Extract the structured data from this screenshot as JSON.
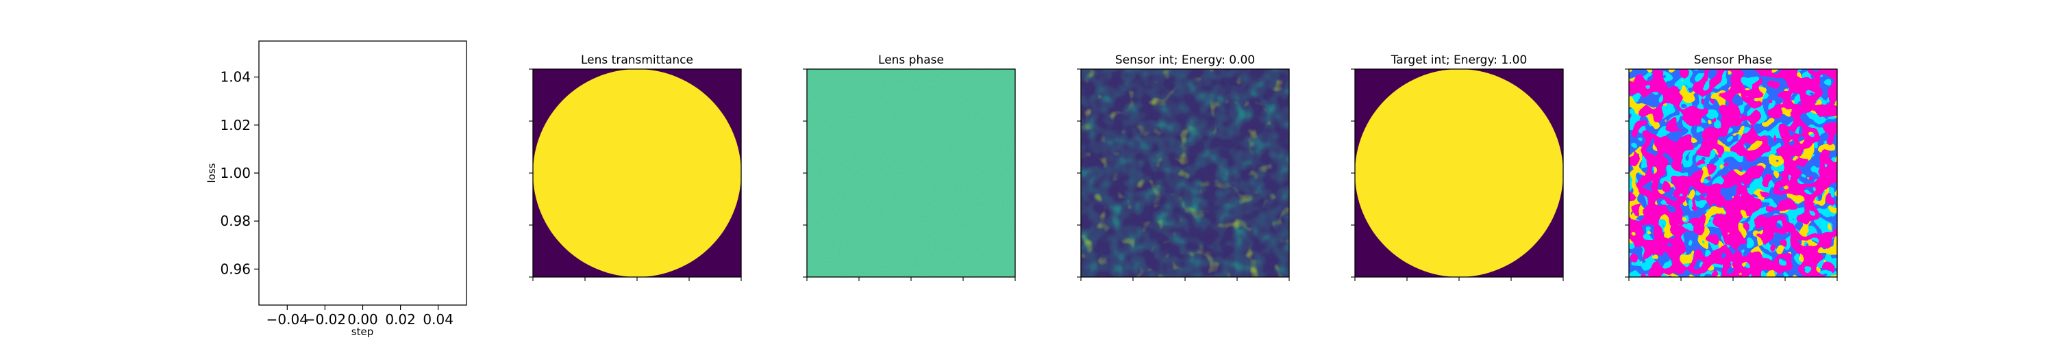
{
  "figure_caption": "",
  "chart_data": [
    {
      "type": "line",
      "title": "",
      "xlabel": "step",
      "ylabel": "loss",
      "xlim": [
        -0.055,
        0.055
      ],
      "ylim": [
        0.945,
        1.055
      ],
      "xticks": [
        -0.04,
        -0.02,
        0.0,
        0.02,
        0.04
      ],
      "xtick_labels": [
        "−0.04",
        "−0.02",
        "0.00",
        "0.02",
        "0.04"
      ],
      "yticks": [
        0.96,
        0.98,
        1.0,
        1.02,
        1.04
      ],
      "ytick_labels": [
        "0.96",
        "0.98",
        "1.00",
        "1.02",
        "1.04"
      ],
      "series": [
        {
          "x": [],
          "y": []
        }
      ],
      "grid": false
    },
    {
      "type": "heatmap",
      "title": "Lens transmittance",
      "pattern": "circular-aperture",
      "colormap": "viridis",
      "inside_color": "#fde725",
      "outside_color": "#440154",
      "axis_ticks_labeled": false
    },
    {
      "type": "heatmap",
      "title": "Lens phase",
      "pattern": "uniform-random-noise",
      "colormap": "viridis",
      "axis_ticks_labeled": false
    },
    {
      "type": "heatmap",
      "title": "Sensor int; Energy: 0.00",
      "pattern": "speckle-intensity",
      "colormap": "viridis",
      "axis_ticks_labeled": false
    },
    {
      "type": "heatmap",
      "title": "Target int; Energy: 1.00",
      "pattern": "circular-aperture",
      "colormap": "viridis",
      "inside_color": "#fde725",
      "outside_color": "#440154",
      "axis_ticks_labeled": false
    },
    {
      "type": "heatmap",
      "title": "Sensor Phase",
      "pattern": "speckle-phase",
      "colormap": "hsv",
      "axis_ticks_labeled": false
    }
  ]
}
